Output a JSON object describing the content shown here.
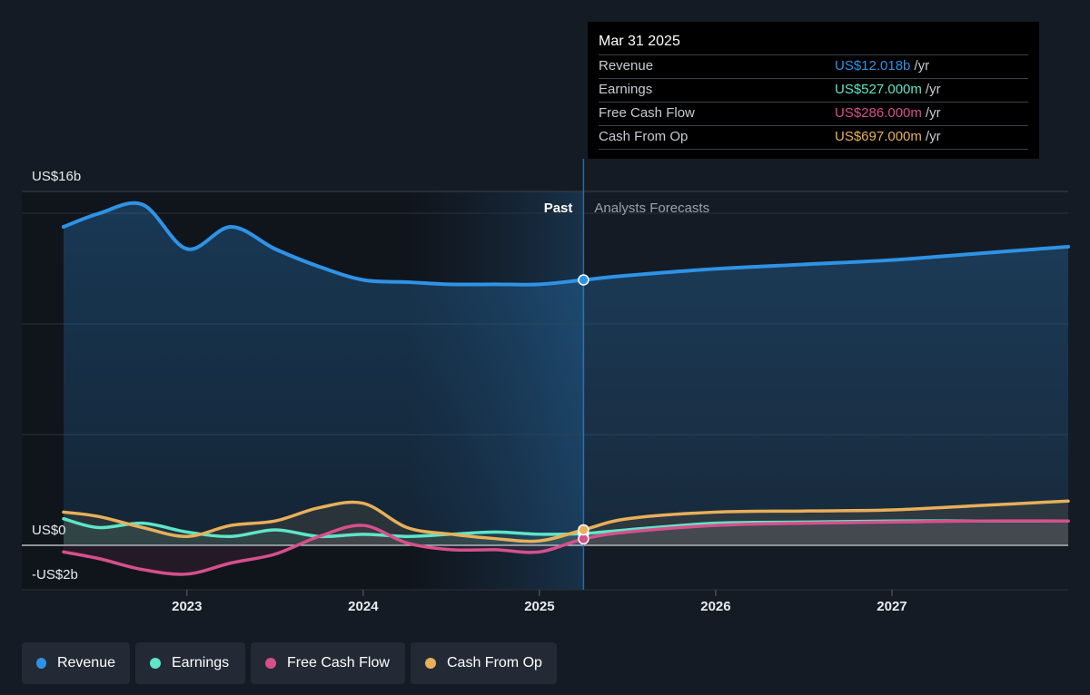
{
  "tooltip": {
    "date": "Mar 31 2025",
    "rows": [
      {
        "label": "Revenue",
        "value": "US$12.018b",
        "unit": "/yr",
        "color": "#2e93e6"
      },
      {
        "label": "Earnings",
        "value": "US$527.000m",
        "unit": "/yr",
        "color": "#5ee6c8"
      },
      {
        "label": "Free Cash Flow",
        "value": "US$286.000m",
        "unit": "/yr",
        "color": "#d6508c"
      },
      {
        "label": "Cash From Op",
        "value": "US$697.000m",
        "unit": "/yr",
        "color": "#e8b05a"
      }
    ]
  },
  "chart_data": {
    "type": "line",
    "y_ticks": [
      "US$16b",
      "US$0",
      "-US$2b"
    ],
    "ylim": [
      -2,
      16
    ],
    "xlim": [
      2022.3,
      2028.0
    ],
    "x_ticks": [
      2023,
      2024,
      2025,
      2026,
      2027
    ],
    "past_label": "Past",
    "forecast_label": "Analysts Forecasts",
    "divider_x": 2025.25,
    "highlight_start_x": 2024.25,
    "series": [
      {
        "name": "Revenue",
        "color": "#2e93e6",
        "points": [
          [
            2022.3,
            14.4
          ],
          [
            2022.5,
            15.0
          ],
          [
            2022.75,
            15.4
          ],
          [
            2023.0,
            13.4
          ],
          [
            2023.25,
            14.4
          ],
          [
            2023.5,
            13.4
          ],
          [
            2023.75,
            12.6
          ],
          [
            2024.0,
            12.0
          ],
          [
            2024.25,
            11.9
          ],
          [
            2024.5,
            11.8
          ],
          [
            2024.75,
            11.8
          ],
          [
            2025.0,
            11.8
          ],
          [
            2025.25,
            12.0
          ],
          [
            2025.5,
            12.2
          ],
          [
            2026.0,
            12.5
          ],
          [
            2026.5,
            12.7
          ],
          [
            2027.0,
            12.9
          ],
          [
            2027.5,
            13.2
          ],
          [
            2028.0,
            13.5
          ]
        ]
      },
      {
        "name": "Earnings",
        "color": "#5ee6c8",
        "points": [
          [
            2022.3,
            1.2
          ],
          [
            2022.5,
            0.8
          ],
          [
            2022.75,
            1.0
          ],
          [
            2023.0,
            0.6
          ],
          [
            2023.25,
            0.4
          ],
          [
            2023.5,
            0.7
          ],
          [
            2023.75,
            0.4
          ],
          [
            2024.0,
            0.5
          ],
          [
            2024.25,
            0.4
          ],
          [
            2024.5,
            0.5
          ],
          [
            2024.75,
            0.6
          ],
          [
            2025.0,
            0.5
          ],
          [
            2025.25,
            0.53
          ],
          [
            2025.5,
            0.7
          ],
          [
            2026.0,
            1.0
          ],
          [
            2026.5,
            1.05
          ],
          [
            2027.0,
            1.1
          ],
          [
            2027.5,
            1.1
          ],
          [
            2028.0,
            1.1
          ]
        ]
      },
      {
        "name": "Free Cash Flow",
        "color": "#d6508c",
        "points": [
          [
            2022.3,
            -0.3
          ],
          [
            2022.5,
            -0.6
          ],
          [
            2022.75,
            -1.1
          ],
          [
            2023.0,
            -1.3
          ],
          [
            2023.25,
            -0.8
          ],
          [
            2023.5,
            -0.4
          ],
          [
            2023.75,
            0.4
          ],
          [
            2024.0,
            0.9
          ],
          [
            2024.25,
            0.1
          ],
          [
            2024.5,
            -0.2
          ],
          [
            2024.75,
            -0.2
          ],
          [
            2025.0,
            -0.3
          ],
          [
            2025.25,
            0.29
          ],
          [
            2025.5,
            0.6
          ],
          [
            2026.0,
            0.9
          ],
          [
            2026.5,
            1.0
          ],
          [
            2027.0,
            1.05
          ],
          [
            2027.5,
            1.1
          ],
          [
            2028.0,
            1.1
          ]
        ]
      },
      {
        "name": "Cash From Op",
        "color": "#e8b05a",
        "points": [
          [
            2022.3,
            1.5
          ],
          [
            2022.5,
            1.3
          ],
          [
            2022.75,
            0.8
          ],
          [
            2023.0,
            0.4
          ],
          [
            2023.25,
            0.9
          ],
          [
            2023.5,
            1.1
          ],
          [
            2023.75,
            1.7
          ],
          [
            2024.0,
            1.9
          ],
          [
            2024.25,
            0.8
          ],
          [
            2024.5,
            0.5
          ],
          [
            2024.75,
            0.3
          ],
          [
            2025.0,
            0.2
          ],
          [
            2025.25,
            0.7
          ],
          [
            2025.5,
            1.2
          ],
          [
            2026.0,
            1.5
          ],
          [
            2026.5,
            1.55
          ],
          [
            2027.0,
            1.6
          ],
          [
            2027.5,
            1.8
          ],
          [
            2028.0,
            2.0
          ]
        ]
      }
    ]
  },
  "legend": [
    {
      "label": "Revenue",
      "color": "#2e93e6"
    },
    {
      "label": "Earnings",
      "color": "#5ee6c8"
    },
    {
      "label": "Free Cash Flow",
      "color": "#d6508c"
    },
    {
      "label": "Cash From Op",
      "color": "#e8b05a"
    }
  ]
}
